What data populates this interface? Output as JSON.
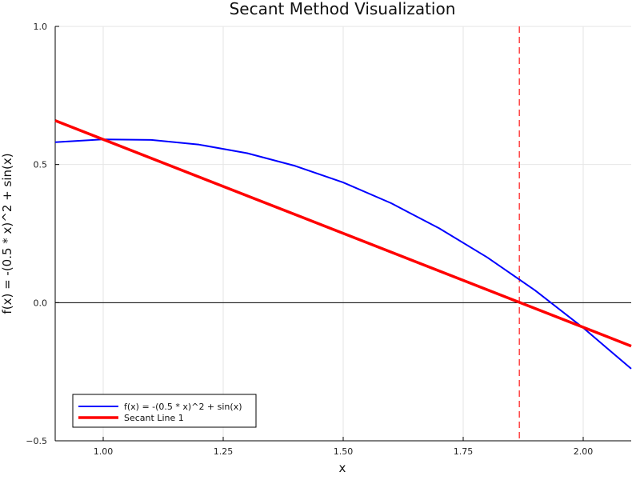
{
  "chart_data": {
    "type": "line",
    "title": "Secant Method Visualization",
    "xlabel": "x",
    "ylabel": "f(x) = -(0.5 * x)^2 + sin(x)",
    "xlim": [
      0.9,
      2.1
    ],
    "ylim": [
      -0.5,
      1.0
    ],
    "x_ticks": [
      1.0,
      1.25,
      1.5,
      1.75,
      2.0
    ],
    "x_tick_labels": [
      "1.00",
      "1.25",
      "1.50",
      "1.75",
      "2.00"
    ],
    "y_ticks": [
      -0.5,
      0.0,
      0.5,
      1.0
    ],
    "y_tick_labels": [
      "−0.5",
      "0.0",
      "0.5",
      "1.0"
    ],
    "grid": true,
    "legend_position": "bottom-left",
    "series": [
      {
        "name": "f(x) = -(0.5 * x)^2 + sin(x)",
        "color": "#0000ff",
        "style": "solid",
        "x": [
          0.9,
          1.0,
          1.1,
          1.2,
          1.3,
          1.4,
          1.5,
          1.6,
          1.7,
          1.8,
          1.9,
          2.0,
          2.1
        ],
        "y": [
          0.581,
          0.591,
          0.589,
          0.572,
          0.541,
          0.495,
          0.435,
          0.36,
          0.269,
          0.164,
          0.044,
          -0.091,
          -0.239
        ]
      },
      {
        "name": "Secant Line 1",
        "color": "#ff0000",
        "style": "solid",
        "x": [
          0.9,
          2.1
        ],
        "y": [
          0.659,
          -0.157
        ]
      }
    ],
    "reference_lines": [
      {
        "orientation": "horizontal",
        "value": 0.0,
        "color": "#000000",
        "style": "solid"
      },
      {
        "orientation": "vertical",
        "value": 1.867,
        "color": "#ff4444",
        "style": "dashed"
      }
    ]
  }
}
